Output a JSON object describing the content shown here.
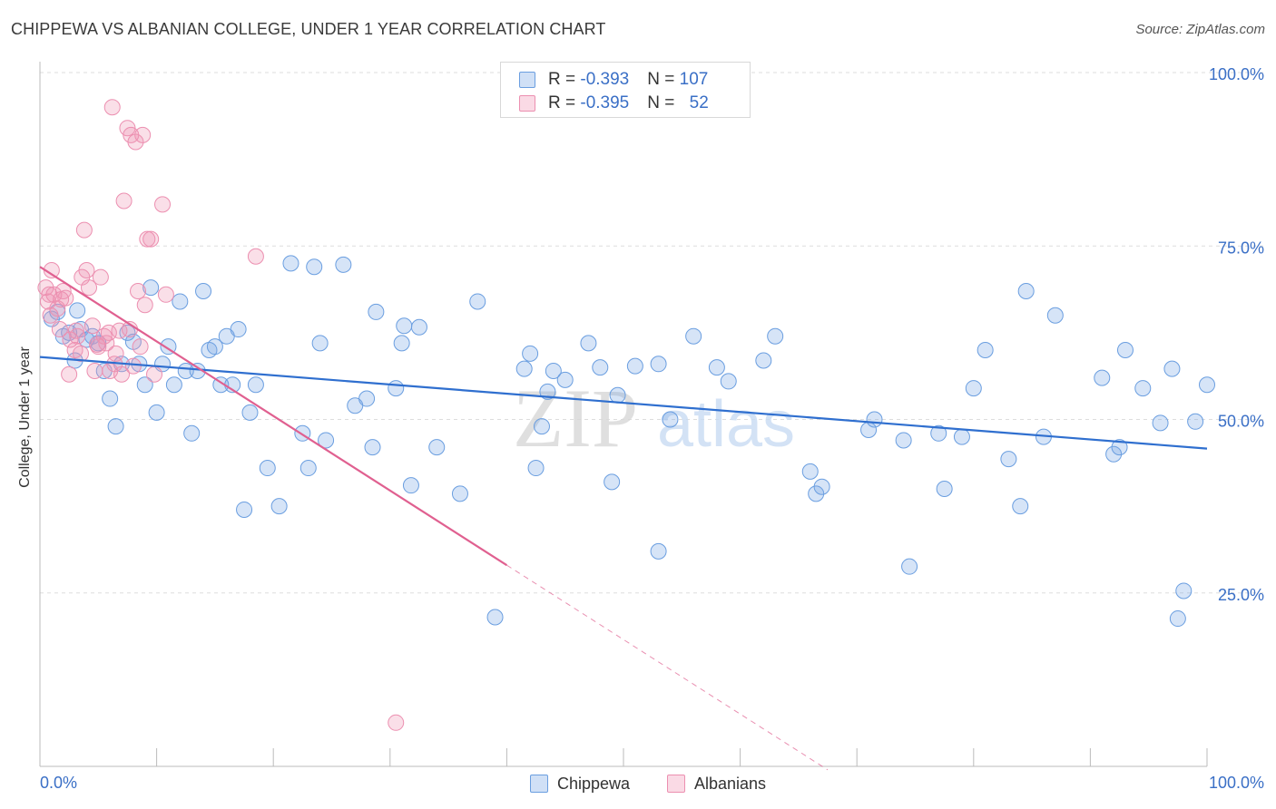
{
  "title": "CHIPPEWA VS ALBANIAN COLLEGE, UNDER 1 YEAR CORRELATION CHART",
  "source": "Source: ZipAtlas.com",
  "watermark": {
    "zip": "ZIP",
    "atlas": "atlas"
  },
  "colors": {
    "chippewa_fill": "rgba(120,165,230,0.30)",
    "chippewa_stroke": "#6a9ee0",
    "chippewa_line": "#2f6fcf",
    "albanians_fill": "rgba(240,150,180,0.30)",
    "albanians_stroke": "#ec8fb0",
    "albanians_line": "#e06090",
    "tick_label": "#3a6fc6",
    "grid": "#dddddd"
  },
  "legend": {
    "rows": [
      {
        "r_label": "R = ",
        "r_value": "-0.393",
        "n_label": "N = ",
        "n_value": "107"
      },
      {
        "r_label": "R = ",
        "r_value": "-0.395",
        "n_label": "N = ",
        "n_value": "52"
      }
    ],
    "series": [
      "Chippewa",
      "Albanians"
    ]
  },
  "chart_data": {
    "type": "scatter",
    "title": "CHIPPEWA VS ALBANIAN COLLEGE, UNDER 1 YEAR CORRELATION CHART",
    "xlabel": "",
    "ylabel": "College, Under 1 year",
    "xlim": [
      0,
      100
    ],
    "ylim": [
      0,
      100
    ],
    "x_tick_labels": [
      "0.0%",
      "100.0%"
    ],
    "y_ticks": [
      25,
      50,
      75,
      100
    ],
    "y_tick_labels": [
      "25.0%",
      "50.0%",
      "75.0%",
      "100.0%"
    ],
    "grid": "horizontal dashed",
    "legend_placement": "top-center and bottom-center",
    "series": [
      {
        "name": "Chippewa",
        "r": -0.393,
        "n": 107,
        "trend": {
          "x": [
            0,
            100
          ],
          "y": [
            59,
            45.8
          ]
        },
        "points": [
          [
            1,
            64.5
          ],
          [
            1.5,
            65.5
          ],
          [
            2,
            62
          ],
          [
            2.5,
            62.5
          ],
          [
            3,
            58.5
          ],
          [
            3.5,
            63
          ],
          [
            3.2,
            65.7
          ],
          [
            4,
            61.5
          ],
          [
            4.5,
            62
          ],
          [
            5,
            61
          ],
          [
            5.5,
            57
          ],
          [
            6,
            53
          ],
          [
            6.5,
            49
          ],
          [
            7,
            58
          ],
          [
            7.5,
            62.5
          ],
          [
            8,
            61.2
          ],
          [
            8.5,
            58
          ],
          [
            9,
            55
          ],
          [
            9.5,
            69
          ],
          [
            10,
            51
          ],
          [
            10.5,
            58
          ],
          [
            11,
            60.5
          ],
          [
            11.5,
            55
          ],
          [
            12,
            67
          ],
          [
            12.5,
            57
          ],
          [
            13,
            48
          ],
          [
            13.5,
            57
          ],
          [
            14,
            68.5
          ],
          [
            14.5,
            60
          ],
          [
            15,
            60.5
          ],
          [
            15.5,
            55
          ],
          [
            16,
            62
          ],
          [
            16.5,
            55
          ],
          [
            17,
            63
          ],
          [
            17.5,
            37
          ],
          [
            18,
            51
          ],
          [
            18.5,
            55
          ],
          [
            19.5,
            43
          ],
          [
            20.5,
            37.5
          ],
          [
            21.5,
            72.5
          ],
          [
            22.5,
            48
          ],
          [
            23,
            43
          ],
          [
            23.5,
            72
          ],
          [
            24,
            61
          ],
          [
            24.5,
            47
          ],
          [
            26,
            72.3
          ],
          [
            27,
            52
          ],
          [
            28,
            53
          ],
          [
            28.5,
            46
          ],
          [
            28.8,
            65.5
          ],
          [
            30.5,
            54.5
          ],
          [
            31,
            61
          ],
          [
            31.2,
            63.5
          ],
          [
            31.8,
            40.5
          ],
          [
            32.5,
            63.3
          ],
          [
            34,
            46
          ],
          [
            36,
            39.3
          ],
          [
            37.5,
            67
          ],
          [
            39,
            21.5
          ],
          [
            41.5,
            57.3
          ],
          [
            42,
            59.5
          ],
          [
            42.5,
            43
          ],
          [
            43,
            49
          ],
          [
            43.5,
            54
          ],
          [
            44,
            57
          ],
          [
            45,
            55.7
          ],
          [
            47,
            61
          ],
          [
            48,
            57.5
          ],
          [
            49,
            41
          ],
          [
            49.5,
            53.5
          ],
          [
            51,
            57.7
          ],
          [
            53,
            58
          ],
          [
            53,
            31
          ],
          [
            54,
            50
          ],
          [
            56,
            62
          ],
          [
            58,
            57.5
          ],
          [
            59,
            55.5
          ],
          [
            62,
            58.5
          ],
          [
            63,
            62
          ],
          [
            66,
            42.5
          ],
          [
            66.5,
            39.3
          ],
          [
            67,
            40.3
          ],
          [
            71,
            48.5
          ],
          [
            71.5,
            50
          ],
          [
            74,
            47
          ],
          [
            74.5,
            28.8
          ],
          [
            77,
            48
          ],
          [
            77.5,
            40
          ],
          [
            79,
            47.5
          ],
          [
            80,
            54.5
          ],
          [
            81,
            60
          ],
          [
            83,
            44.3
          ],
          [
            84,
            37.5
          ],
          [
            84.5,
            68.5
          ],
          [
            86,
            47.5
          ],
          [
            87,
            65
          ],
          [
            91,
            56
          ],
          [
            92,
            45
          ],
          [
            92.5,
            46
          ],
          [
            93,
            60
          ],
          [
            94.5,
            54.5
          ],
          [
            96,
            49.5
          ],
          [
            97,
            57.3
          ],
          [
            97.5,
            21.3
          ],
          [
            98,
            25.3
          ],
          [
            99,
            49.7
          ],
          [
            100,
            55
          ]
        ]
      },
      {
        "name": "Albanians",
        "r": -0.395,
        "n": 52,
        "trend": {
          "x": [
            0,
            40
          ],
          "y": [
            72,
            29
          ],
          "dashed_extension": {
            "x": [
              40,
              67.5
            ],
            "y": [
              29,
              -0.5
            ]
          }
        },
        "points": [
          [
            0.5,
            69
          ],
          [
            0.7,
            67
          ],
          [
            0.8,
            68
          ],
          [
            1,
            71.5
          ],
          [
            1.5,
            66
          ],
          [
            1.7,
            63
          ],
          [
            2,
            68.5
          ],
          [
            2.2,
            67.5
          ],
          [
            2.5,
            56.5
          ],
          [
            3,
            60
          ],
          [
            3.2,
            62
          ],
          [
            3.5,
            59.5
          ],
          [
            3.8,
            77.3
          ],
          [
            4,
            71.5
          ],
          [
            4.2,
            69
          ],
          [
            4.5,
            63.5
          ],
          [
            4.7,
            57
          ],
          [
            5,
            60.5
          ],
          [
            5.2,
            70.5
          ],
          [
            5.5,
            62
          ],
          [
            5.7,
            61
          ],
          [
            6,
            57
          ],
          [
            6.2,
            95
          ],
          [
            6.5,
            59.5
          ],
          [
            6.8,
            62.8
          ],
          [
            7,
            56.5
          ],
          [
            7.2,
            81.5
          ],
          [
            7.5,
            92
          ],
          [
            7.8,
            91
          ],
          [
            8,
            57.7
          ],
          [
            8.2,
            90
          ],
          [
            8.4,
            68.5
          ],
          [
            8.6,
            60.5
          ],
          [
            8.8,
            91
          ],
          [
            9,
            66.5
          ],
          [
            9.2,
            76
          ],
          [
            9.5,
            76
          ],
          [
            9.8,
            56.5
          ],
          [
            10.5,
            81
          ],
          [
            10.8,
            68
          ],
          [
            2.6,
            61.5
          ],
          [
            3.1,
            62.8
          ],
          [
            1.2,
            68
          ],
          [
            0.9,
            65
          ],
          [
            1.8,
            67.3
          ],
          [
            4.9,
            60.8
          ],
          [
            6.4,
            58
          ],
          [
            5.9,
            62.5
          ],
          [
            7.7,
            63
          ],
          [
            3.6,
            70.5
          ],
          [
            18.5,
            73.5
          ],
          [
            30.5,
            6.3
          ]
        ]
      }
    ]
  }
}
